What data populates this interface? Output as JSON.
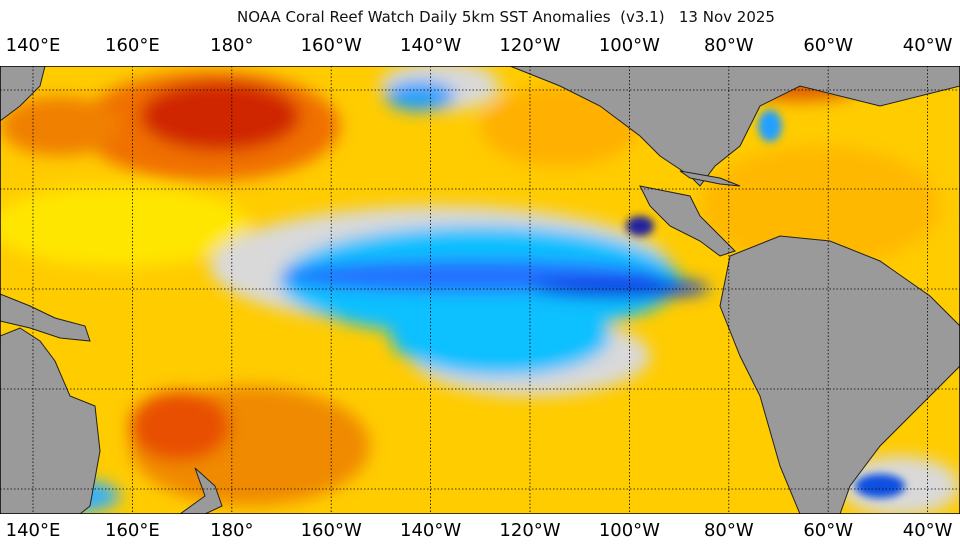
{
  "title": "NOAA Coral Reef Watch Daily 5km SST Anomalies  (v3.1)   13 Nov 2025",
  "longitude_labels": [
    "140°E",
    "160°E",
    "180°",
    "160°W",
    "140°W",
    "120°W",
    "100°W",
    "80°W",
    "60°W",
    "40°W"
  ],
  "colors": {
    "land": "#9a9a9a",
    "neutral": "#d9d9d9",
    "warm_weak": "#ffee00",
    "warm_mid": "#ffaa00",
    "warm_strong": "#e03000",
    "warm_extreme": "#6a0000",
    "cool_weak": "#00c0ff",
    "cool_mid": "#1060ff",
    "cool_strong": "#2020a0"
  }
}
